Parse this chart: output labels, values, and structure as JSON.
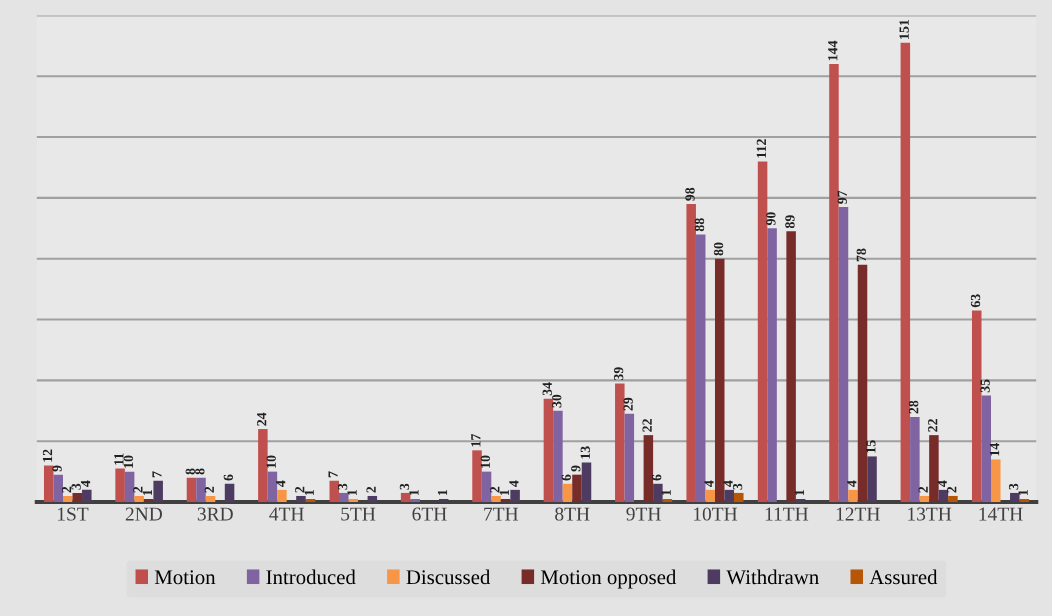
{
  "chart_data": {
    "type": "bar",
    "categories": [
      "1ST",
      "2ND",
      "3RD",
      "4TH",
      "5TH",
      "6TH",
      "7TH",
      "8TH",
      "9TH",
      "10TH",
      "11TH",
      "12TH",
      "13TH",
      "14TH"
    ],
    "series": [
      {
        "name": "Motion",
        "color": "#c0504d",
        "values": [
          12,
          11,
          8,
          24,
          7,
          3,
          17,
          34,
          39,
          98,
          112,
          144,
          151,
          63
        ],
        "value_labels": [
          "12",
          "11",
          "8",
          "24",
          "7",
          "3",
          "17",
          "34",
          "39",
          "98",
          "112",
          "144",
          "151",
          "63"
        ]
      },
      {
        "name": "Introduced",
        "color": "#8064a2",
        "values": [
          9,
          10,
          8,
          10,
          3,
          1,
          10,
          30,
          29,
          88,
          90,
          97,
          28,
          35
        ],
        "value_labels": [
          "9",
          "10",
          "8",
          "10",
          "3",
          "1",
          "10",
          "30",
          "29",
          "88",
          "90",
          "97",
          "28",
          "35"
        ]
      },
      {
        "name": "Discussed",
        "color": "#f79646",
        "values": [
          2,
          2,
          2,
          4,
          1,
          0,
          2,
          6,
          0,
          4,
          0,
          4,
          2,
          14
        ],
        "value_labels": [
          "2",
          "2",
          "2",
          "4",
          "1",
          null,
          "2",
          "6",
          null,
          "4",
          null,
          "4",
          "2",
          "14"
        ]
      },
      {
        "name": "Motion opposed",
        "color": "#772c2a",
        "values": [
          3,
          1,
          0,
          0,
          0,
          0,
          1,
          9,
          22,
          80,
          89,
          78,
          22,
          0
        ],
        "value_labels": [
          "3",
          "1",
          null,
          null,
          null,
          null,
          "1",
          "9",
          "22",
          "80",
          "89",
          "78",
          "22",
          null
        ]
      },
      {
        "name": "Withdrawn",
        "color": "#4d3b62",
        "values": [
          4,
          7,
          6,
          2,
          2,
          1,
          4,
          13,
          6,
          4,
          1,
          15,
          4,
          3
        ],
        "value_labels": [
          "4",
          "7",
          "6",
          "2",
          "2",
          "1",
          "4",
          "13",
          "6",
          "4",
          "1",
          "15",
          "4",
          "3"
        ]
      },
      {
        "name": "Assured",
        "color": "#b65708",
        "values": [
          0,
          0,
          0,
          1,
          0,
          0,
          0,
          0,
          1,
          3,
          0,
          0,
          2,
          1
        ],
        "value_labels": [
          null,
          null,
          null,
          "1",
          null,
          null,
          null,
          null,
          "1",
          "3",
          null,
          null,
          "2",
          "1"
        ]
      }
    ],
    "ylim": [
      0,
      160
    ],
    "yticks": [
      {
        "value": 0,
        "label": null
      },
      {
        "value": 20,
        "label": null
      },
      {
        "value": 40,
        "label": null
      },
      {
        "value": 60,
        "label": null
      },
      {
        "value": 80,
        "label": null
      },
      {
        "value": 100,
        "label": null
      },
      {
        "value": 120,
        "label": null
      },
      {
        "value": 140,
        "label": null
      },
      {
        "value": 160,
        "label": null
      }
    ],
    "tick_labels": "x",
    "grid": "y",
    "legend": "bottom"
  }
}
